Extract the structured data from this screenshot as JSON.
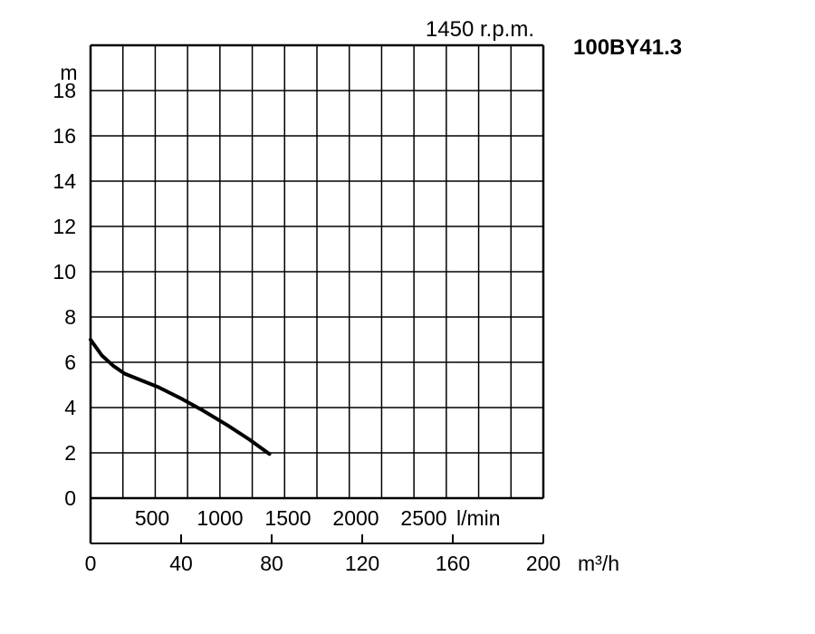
{
  "chart_data": {
    "type": "line",
    "speed_label": "1450 r.p.m.",
    "model": "100BY41.3",
    "ylabel": "m",
    "xlabel": "m³/h",
    "ylim": [
      0,
      20
    ],
    "xlim": [
      0,
      200
    ],
    "yticks": [
      "0",
      "2",
      "4",
      "6",
      "8",
      "10",
      "12",
      "14",
      "16",
      "18"
    ],
    "yticks_values": [
      0,
      2,
      4,
      6,
      8,
      10,
      12,
      14,
      16,
      18
    ],
    "xticks": [
      "0",
      "40",
      "80",
      "120",
      "160",
      "200"
    ],
    "xticks_values": [
      0,
      40,
      80,
      120,
      160,
      200
    ],
    "secondary_x": {
      "labels": [
        "500",
        "1000",
        "1500",
        "2000",
        "2500"
      ],
      "values_m3h": [
        30,
        60,
        90,
        120,
        150
      ],
      "unit": "l/min"
    },
    "grid": true,
    "series": [
      {
        "x": [
          0,
          5,
          10,
          15,
          20,
          30,
          40,
          50,
          60,
          70,
          79
        ],
        "y": [
          7.0,
          6.3,
          5.85,
          5.5,
          5.3,
          4.9,
          4.4,
          3.85,
          3.25,
          2.6,
          1.95
        ]
      }
    ]
  }
}
